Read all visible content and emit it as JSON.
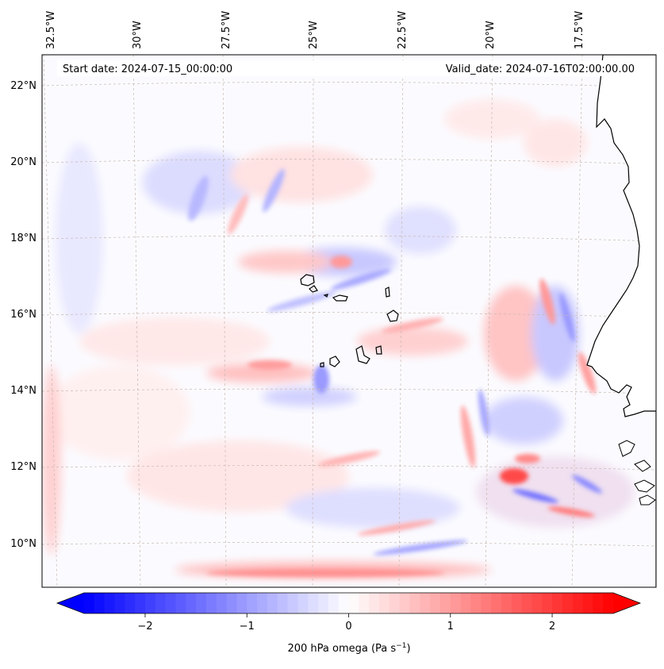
{
  "map": {
    "start_date_text": "Start date: 2024-07-15_00:00:00",
    "valid_date_text": "Valid_date: 2024-07-16T02:00:00.00",
    "lon_labels": [
      "32.5°W",
      "30°W",
      "27.5°W",
      "25°W",
      "22.5°W",
      "20°W",
      "17.5°W"
    ],
    "lat_labels": [
      "22°N",
      "20°N",
      "18°N",
      "16°N",
      "14°N",
      "12°N",
      "10°N"
    ],
    "field": "200 hPa omega",
    "field_cmap": "bwr",
    "coastline_color": "#000000",
    "gridline_color": "#c8b8b0"
  },
  "colorbar": {
    "label_main": "200 hPa omega (Pa s",
    "label_exp": "−1",
    "label_close": ")",
    "ticks": [
      "−2",
      "−1",
      "0",
      "1",
      "2"
    ],
    "vmin": -2.6,
    "vmax": 2.6,
    "neg_color": "#0000ff",
    "mid_color": "#ffffff",
    "pos_color": "#ff0000"
  }
}
